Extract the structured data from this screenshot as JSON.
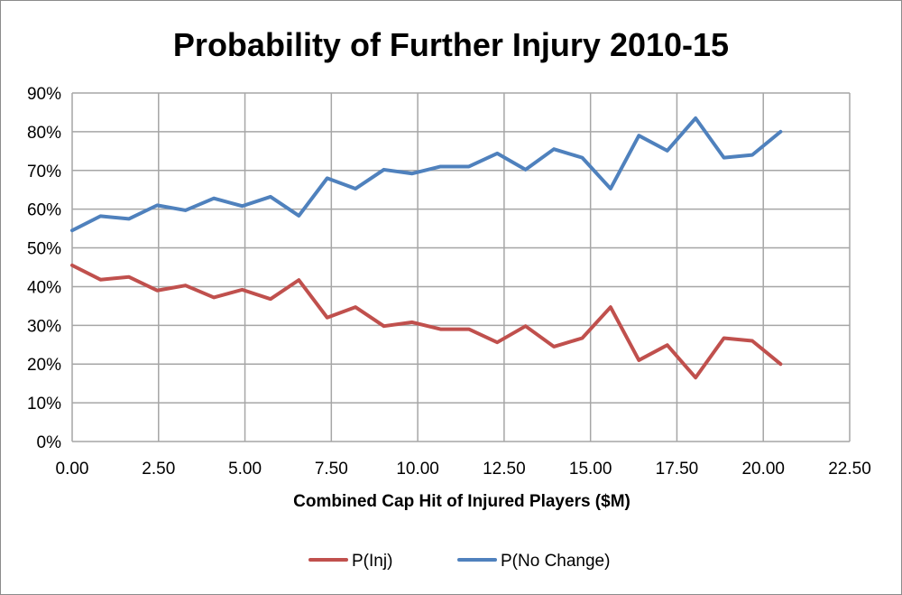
{
  "chart_data": {
    "type": "line",
    "title": "Probability of Further Injury 2010-15",
    "xlabel": "Combined Cap Hit of Injured Players ($M)",
    "ylabel": "",
    "xlim": [
      0,
      22.5
    ],
    "ylim": [
      0,
      0.9
    ],
    "x_ticks": [
      "0.00",
      "2.50",
      "5.00",
      "7.50",
      "10.00",
      "12.50",
      "15.00",
      "17.50",
      "20.00",
      "22.50"
    ],
    "y_ticks": [
      "0%",
      "10%",
      "20%",
      "30%",
      "40%",
      "50%",
      "60%",
      "70%",
      "80%",
      "90%"
    ],
    "grid": true,
    "legend_position": "bottom",
    "x": [
      0.0,
      0.82,
      1.64,
      2.46,
      3.28,
      4.1,
      4.92,
      5.74,
      6.56,
      7.38,
      8.2,
      9.02,
      9.84,
      10.66,
      11.48,
      12.3,
      13.12,
      13.94,
      14.76,
      15.58,
      16.4,
      17.22,
      18.04,
      18.86,
      19.68,
      20.5
    ],
    "series": [
      {
        "name": "P(Inj)",
        "color": "#c0504d",
        "values": [
          0.455,
          0.418,
          0.425,
          0.39,
          0.403,
          0.372,
          0.392,
          0.368,
          0.417,
          0.32,
          0.347,
          0.298,
          0.308,
          0.29,
          0.29,
          0.256,
          0.298,
          0.245,
          0.267,
          0.347,
          0.21,
          0.249,
          0.165,
          0.267,
          0.26,
          0.2
        ]
      },
      {
        "name": "P(No Change)",
        "color": "#4f81bd",
        "values": [
          0.545,
          0.582,
          0.575,
          0.61,
          0.597,
          0.628,
          0.608,
          0.632,
          0.583,
          0.68,
          0.653,
          0.702,
          0.692,
          0.71,
          0.71,
          0.744,
          0.702,
          0.755,
          0.733,
          0.653,
          0.79,
          0.751,
          0.835,
          0.733,
          0.74,
          0.8
        ]
      }
    ]
  }
}
